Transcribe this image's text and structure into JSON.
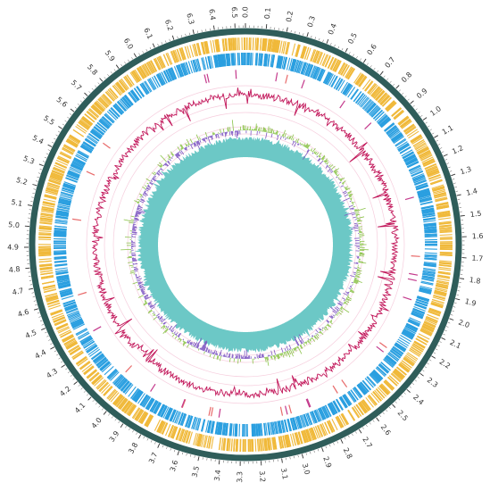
{
  "map": {
    "tick_labels": [
      "0.0",
      "0.1",
      "0.2",
      "0.3",
      "0.4",
      "0.5",
      "0.6",
      "0.7",
      "0.8",
      "0.9",
      "1.0",
      "1.1",
      "1.2",
      "1.3",
      "1.4",
      "1.5",
      "1.6",
      "1.7",
      "1.8",
      "1.9",
      "2.0",
      "2.1",
      "2.2",
      "2.3",
      "2.4",
      "2.5",
      "2.6",
      "2.7",
      "2.8",
      "2.9",
      "3.0",
      "3.1",
      "3.2",
      "3.3",
      "3.4",
      "3.5",
      "3.6",
      "3.7",
      "3.8",
      "3.9",
      "4.0",
      "4.1",
      "4.2",
      "4.3",
      "4.4",
      "4.5",
      "4.6",
      "4.7",
      "4.8",
      "4.9",
      "5.0",
      "5.1",
      "5.2",
      "5.3",
      "5.4",
      "5.5",
      "5.6",
      "5.7",
      "5.8",
      "5.9",
      "6.0",
      "6.1",
      "6.2",
      "6.3",
      "6.4",
      "6.5"
    ],
    "genome_length_mb": 6.55,
    "colors": {
      "backbone": "#2f5d5a",
      "cds_forward": "#f0b93a",
      "cds_reverse": "#2a9fe0",
      "trna": "#e86a6a",
      "rrna": "#c43a8c",
      "gc_content": "#c2185b",
      "gc_skew_positive": "#8bc34a",
      "gc_skew_negative": "#7e57c2",
      "inner_ring": "#6cc8c6",
      "grid": "#f2b8cf"
    }
  }
}
